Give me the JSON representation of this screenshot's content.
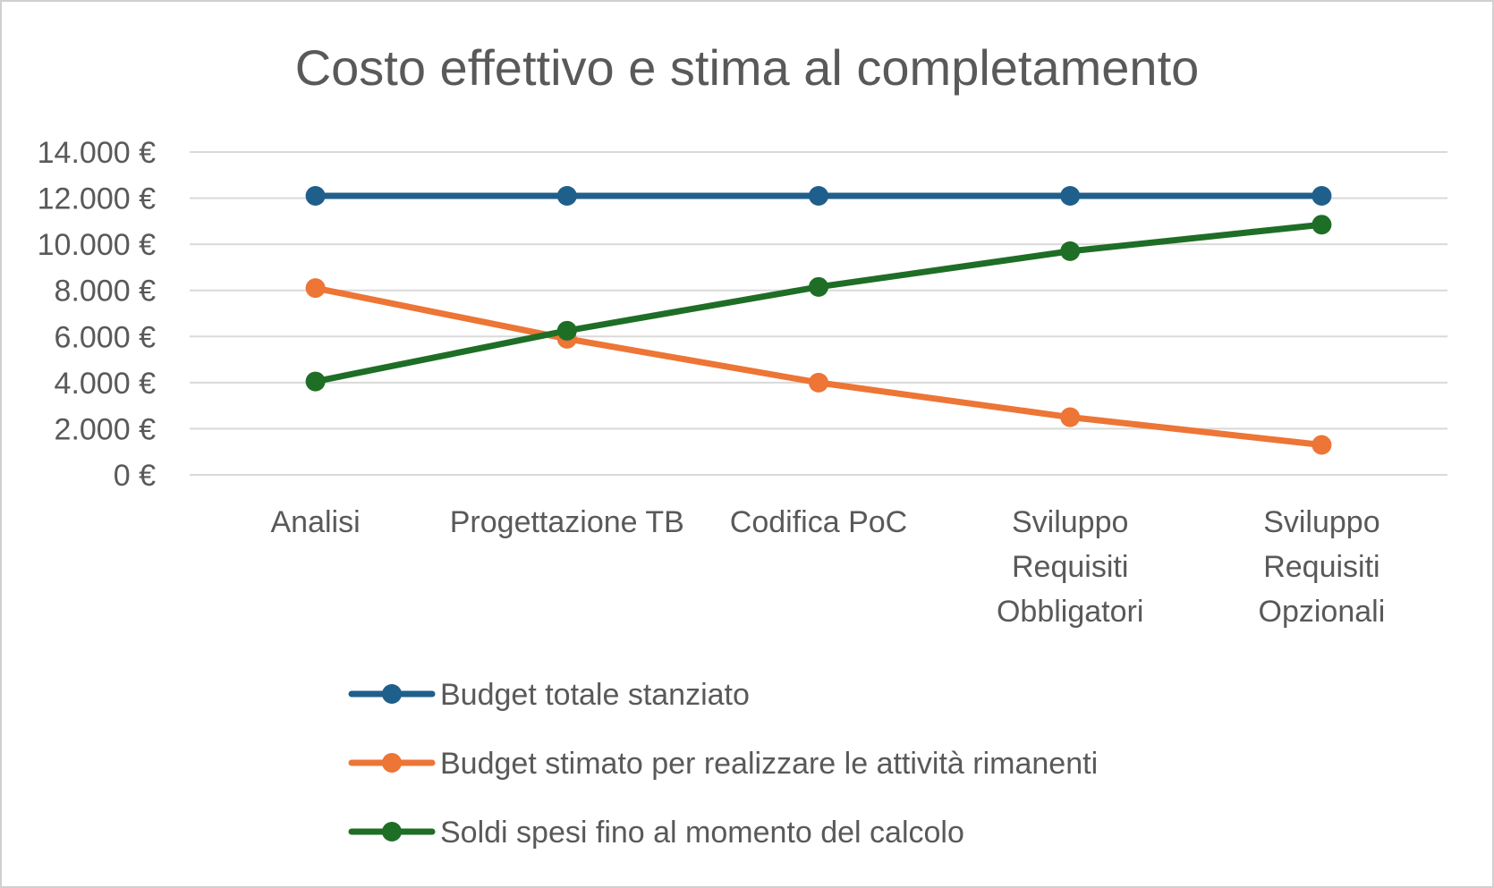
{
  "chart_data": {
    "type": "line",
    "title": "Costo effettivo e stima al completamento",
    "xlabel": "",
    "ylabel": "",
    "categories": [
      [
        "Analisi"
      ],
      [
        "Progettazione TB"
      ],
      [
        "Codifica PoC"
      ],
      [
        "Sviluppo",
        "Requisiti",
        "Obbligatori"
      ],
      [
        "Sviluppo",
        "Requisiti",
        "Opzionali"
      ]
    ],
    "ylim": [
      0,
      14000
    ],
    "yticks": [
      0,
      2000,
      4000,
      6000,
      8000,
      10000,
      12000,
      14000
    ],
    "ytick_labels": [
      "0 €",
      "2.000 €",
      "4.000 €",
      "6.000 €",
      "8.000 €",
      "10.000 €",
      "12.000 €",
      "14.000 €"
    ],
    "grid": true,
    "legend_position": "bottom",
    "series": [
      {
        "name": "Budget totale stanziato",
        "color": "#1f5f8b",
        "values": [
          12100,
          12100,
          12100,
          12100,
          12100
        ]
      },
      {
        "name": "Budget stimato per realizzare le attività rimanenti",
        "color": "#ed7535",
        "values": [
          8100,
          5900,
          4000,
          2500,
          1300
        ]
      },
      {
        "name": "Soldi spesi fino al momento del calcolo",
        "color": "#1e6e26",
        "values": [
          4050,
          6250,
          8150,
          9700,
          10850
        ]
      }
    ]
  }
}
